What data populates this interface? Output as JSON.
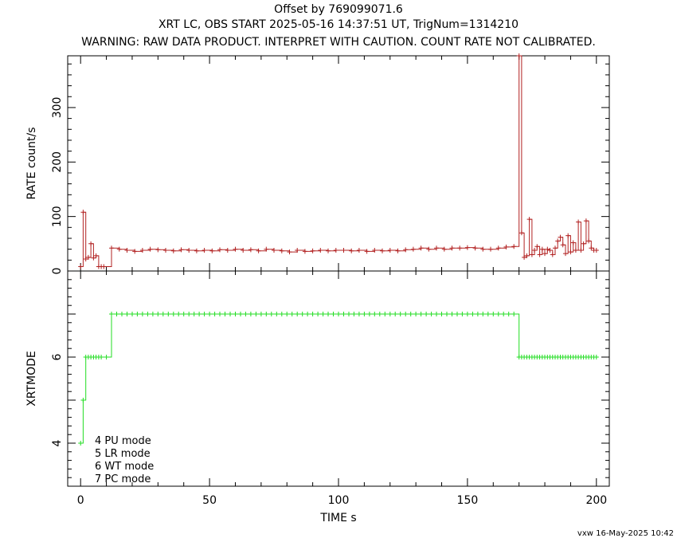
{
  "header": {
    "title": "Offset by 769099071.6",
    "subtitle": "XRT LC, OBS START 2025-05-16 14:37:51 UT, TrigNum=1314210",
    "warning": "WARNING: RAW DATA PRODUCT. INTERPRET WITH CAUTION. COUNT RATE NOT CALIBRATED."
  },
  "footer": "vxw 16-May-2025 10:42",
  "colors": {
    "rate": "#b22222",
    "mode": "#22dd22",
    "axis": "#000000"
  },
  "chart_data": [
    {
      "type": "line",
      "step": true,
      "ylabel": "RATE  count/s",
      "xlim": [
        -5,
        205
      ],
      "ylim": [
        0,
        395
      ],
      "yticks": [
        0,
        100,
        200,
        300
      ],
      "series": [
        {
          "x": [
            0,
            1,
            2,
            3,
            4,
            5,
            6,
            7,
            8,
            9,
            12,
            15,
            18,
            21,
            24,
            27,
            30,
            33,
            36,
            39,
            42,
            45,
            48,
            51,
            54,
            57,
            60,
            63,
            66,
            69,
            72,
            75,
            78,
            81,
            84,
            87,
            90,
            93,
            96,
            99,
            102,
            105,
            108,
            111,
            114,
            117,
            120,
            123,
            126,
            129,
            132,
            135,
            138,
            141,
            144,
            147,
            150,
            153,
            156,
            159,
            162,
            165,
            168,
            170,
            171,
            172,
            173,
            174,
            175,
            176,
            177,
            178,
            179,
            180,
            181,
            182,
            183,
            184,
            185,
            186,
            187,
            188,
            189,
            190,
            191,
            192,
            193,
            194,
            195,
            196,
            197,
            198,
            199,
            200
          ],
          "y": [
            8,
            108,
            22,
            25,
            50,
            24,
            28,
            8,
            8,
            8,
            42,
            40,
            38,
            36,
            38,
            40,
            39,
            38,
            37,
            39,
            38,
            37,
            38,
            37,
            39,
            38,
            40,
            38,
            39,
            37,
            40,
            38,
            37,
            35,
            38,
            36,
            37,
            38,
            37,
            38,
            38,
            37,
            38,
            36,
            38,
            37,
            38,
            37,
            39,
            40,
            42,
            40,
            42,
            40,
            42,
            42,
            43,
            42,
            40,
            40,
            42,
            44,
            45,
            395,
            70,
            25,
            28,
            95,
            30,
            38,
            45,
            30,
            40,
            32,
            40,
            38,
            30,
            42,
            55,
            62,
            48,
            32,
            65,
            35,
            52,
            38,
            90,
            38,
            50,
            92,
            55,
            42,
            38,
            38
          ]
        }
      ]
    },
    {
      "type": "line",
      "step": true,
      "xlabel": "TIME  s",
      "ylabel": "XRTMODE",
      "xlim": [
        -5,
        205
      ],
      "ylim": [
        3,
        8
      ],
      "xticks": [
        0,
        50,
        100,
        150,
        200
      ],
      "yticks": [
        4,
        6
      ],
      "legend": [
        "4 PU mode",
        "5 LR mode",
        "6 WT mode",
        "7 PC mode"
      ],
      "series": [
        {
          "x": [
            0,
            1,
            2,
            3,
            4,
            5,
            6,
            7,
            8,
            10,
            12,
            14,
            16,
            18,
            20,
            22,
            24,
            26,
            28,
            30,
            32,
            34,
            36,
            38,
            40,
            42,
            44,
            46,
            48,
            50,
            52,
            54,
            56,
            58,
            60,
            62,
            64,
            66,
            68,
            70,
            72,
            74,
            76,
            78,
            80,
            82,
            84,
            86,
            88,
            90,
            92,
            94,
            96,
            98,
            100,
            102,
            104,
            106,
            108,
            110,
            112,
            114,
            116,
            118,
            120,
            122,
            124,
            126,
            128,
            130,
            132,
            134,
            136,
            138,
            140,
            142,
            144,
            146,
            148,
            150,
            152,
            154,
            156,
            158,
            160,
            162,
            164,
            166,
            168,
            170,
            171,
            172,
            173,
            174,
            175,
            176,
            177,
            178,
            179,
            180,
            181,
            182,
            183,
            184,
            185,
            186,
            187,
            188,
            189,
            190,
            191,
            192,
            193,
            194,
            195,
            196,
            197,
            198,
            199,
            200
          ],
          "y": [
            4,
            5,
            6,
            6,
            6,
            6,
            6,
            6,
            6,
            6,
            7,
            7,
            7,
            7,
            7,
            7,
            7,
            7,
            7,
            7,
            7,
            7,
            7,
            7,
            7,
            7,
            7,
            7,
            7,
            7,
            7,
            7,
            7,
            7,
            7,
            7,
            7,
            7,
            7,
            7,
            7,
            7,
            7,
            7,
            7,
            7,
            7,
            7,
            7,
            7,
            7,
            7,
            7,
            7,
            7,
            7,
            7,
            7,
            7,
            7,
            7,
            7,
            7,
            7,
            7,
            7,
            7,
            7,
            7,
            7,
            7,
            7,
            7,
            7,
            7,
            7,
            7,
            7,
            7,
            7,
            7,
            7,
            7,
            7,
            7,
            7,
            7,
            7,
            7,
            6,
            6,
            6,
            6,
            6,
            6,
            6,
            6,
            6,
            6,
            6,
            6,
            6,
            6,
            6,
            6,
            6,
            6,
            6,
            6,
            6,
            6,
            6,
            6,
            6,
            6,
            6,
            6,
            6,
            6,
            6
          ]
        }
      ]
    }
  ]
}
